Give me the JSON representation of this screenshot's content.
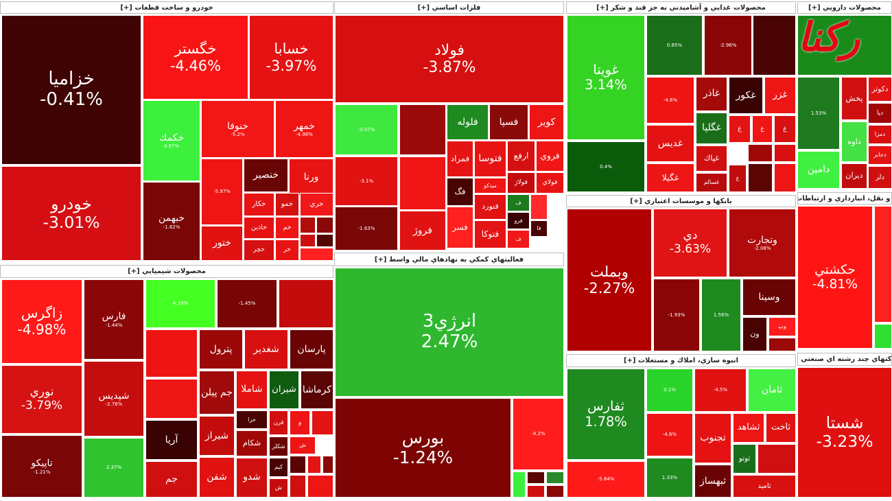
{
  "logo": "رکنا",
  "sectors": [
    {
      "title": "خودرو و ساخت قطعات [+]",
      "tiles": [
        {
          "symbol": "خزاميا",
          "change": "-0.41%",
          "color": "#3f0303"
        },
        {
          "symbol": "خودرو",
          "change": "-3.01%",
          "color": "#d40e12"
        },
        {
          "symbol": "خگستر",
          "change": "-4.46%",
          "color": "#f81414"
        },
        {
          "symbol": "خسابا",
          "change": "-3.97%",
          "color": "#e41212"
        },
        {
          "symbol": "خكمك",
          "change": "4.97%",
          "color": "#3cf03c"
        },
        {
          "symbol": "خنوفا",
          "change": "-5.2%",
          "color": "#f21616"
        },
        {
          "symbol": "خمهر",
          "change": "-4.98%",
          "color": "#f01515"
        },
        {
          "symbol": "خبهمن",
          "change": "-1.62%",
          "color": "#7a0606"
        },
        {
          "change": "-5.97%",
          "color": "#ef1515"
        },
        {
          "symbol": "خنصير",
          "color": "#6a0505"
        },
        {
          "symbol": "ورنا",
          "color": "#e81414"
        },
        {
          "symbol": "ختور",
          "color": "#e01212"
        },
        {
          "symbol": "خكار",
          "color": "#e81414"
        },
        {
          "symbol": "خمو",
          "color": "#d41010"
        },
        {
          "symbol": "خري",
          "color": "#f01818"
        },
        {
          "symbol": "خاذين",
          "color": "#e41212"
        },
        {
          "symbol": "خم",
          "color": "#ee1515"
        },
        {
          "symbol": "خچر",
          "color": "#d41010"
        },
        {
          "symbol": "خر",
          "color": "#e81414"
        },
        {
          "color": "#b00c0c"
        },
        {
          "color": "#8a0808"
        },
        {
          "color": "#cc1010"
        },
        {
          "color": "#550404"
        },
        {
          "color": "#ff2020"
        }
      ]
    },
    {
      "title": "فلزات اساسي [+]",
      "tiles": [
        {
          "symbol": "فولاد",
          "change": "-3.87%",
          "color": "#d61010"
        },
        {
          "change": "-3.07%",
          "color": "#3fe83f"
        },
        {
          "color": "#9a0a0a"
        },
        {
          "symbol": "فلوله",
          "color": "#1f8a1f"
        },
        {
          "symbol": "فسپا",
          "color": "#8a0a0a"
        },
        {
          "symbol": "كوير",
          "color": "#ee1515"
        },
        {
          "change": "-3.1%",
          "color": "#e01212"
        },
        {
          "color": "#f01616"
        },
        {
          "symbol": "فمراد",
          "color": "#e41414"
        },
        {
          "symbol": "فتوسا",
          "color": "#e81414"
        },
        {
          "symbol": "ارفع",
          "color": "#d61010"
        },
        {
          "symbol": "فروي",
          "color": "#f01616"
        },
        {
          "symbol": "فگ",
          "color": "#4a0303"
        },
        {
          "symbol": "ميدكو",
          "color": "#ee1515"
        },
        {
          "symbol": "فولاژ",
          "color": "#c40c0c"
        },
        {
          "symbol": "فولاي",
          "color": "#e81414"
        },
        {
          "symbol": "فنورد",
          "color": "#e01212"
        },
        {
          "symbol": "ف",
          "color": "#1d7a1d"
        },
        {
          "color": "#ff2a2a"
        },
        {
          "symbol": "فسر",
          "color": "#ff2020"
        },
        {
          "symbol": "فتوكا",
          "color": "#e41414"
        },
        {
          "symbol": "فرو",
          "color": "#3a0303"
        },
        {
          "symbol": "فا",
          "color": "#4a0404"
        },
        {
          "symbol": "ف",
          "color": "#f01818"
        },
        {
          "change": "-1.63%",
          "color": "#7a0606"
        },
        {
          "symbol": "فروژ",
          "color": "#e01212"
        }
      ]
    },
    {
      "title": "فعاليتهاي كمكي به نهادهاي مالي واسط [+]",
      "tiles": [
        {
          "symbol": "انرژي3",
          "change": "2.47%",
          "color": "#2fb82f"
        },
        {
          "symbol": "بورس",
          "change": "-1.24%",
          "color": "#7e0404"
        },
        {
          "change": "-4.2%",
          "color": "#ff1c1c"
        },
        {
          "color": "#3af03a"
        },
        {
          "color": "#5a0404"
        },
        {
          "color": "#2a8a2a"
        },
        {
          "color": "#d01010"
        },
        {
          "color": "#8a0808"
        }
      ]
    },
    {
      "title": "محصولات غذايي و آشاميدني به جز قند و شكر [+]",
      "tiles": [
        {
          "symbol": "غويتا",
          "change": "3.14%",
          "color": "#35d424"
        },
        {
          "change": "0.4%",
          "color": "#0a5c0a"
        },
        {
          "change": "0.85%",
          "color": "#1a6e1a"
        },
        {
          "change": "-2.96%",
          "color": "#8a0606"
        },
        {
          "color": "#4a0303"
        },
        {
          "change": "-4.6%",
          "color": "#ee1414"
        },
        {
          "symbol": "غاذر",
          "color": "#a40a0a"
        },
        {
          "symbol": "غكور",
          "color": "#3a0303"
        },
        {
          "symbol": "غزر",
          "color": "#ee1515"
        },
        {
          "symbol": "غديس",
          "color": "#e41212"
        },
        {
          "symbol": "غگلپا",
          "color": "#1a6e1a"
        },
        {
          "symbol": "غ",
          "color": "#e41414"
        },
        {
          "symbol": "غ",
          "color": "#f01616"
        },
        {
          "symbol": "غ",
          "color": "#d81010"
        },
        {
          "symbol": "غپاك",
          "color": "#d01010"
        },
        {
          "symbol": "غگيلا",
          "color": "#ee1515"
        },
        {
          "symbol": "غسالم",
          "color": "#b80c0c"
        },
        {
          "symbol": "غ",
          "color": "#c00c0c"
        },
        {
          "color": "#a00808"
        },
        {
          "color": "#d81010"
        },
        {
          "color": "#5a0404"
        },
        {
          "color": "#ee1515"
        }
      ]
    },
    {
      "title": "محصولات دارويي [+]",
      "tiles": [
        {
          "color": "#1a8a1a"
        },
        {
          "change": "1.53%",
          "color": "#1f7a1f"
        },
        {
          "symbol": "دكوثر",
          "color": "#e01212"
        },
        {
          "symbol": "پخش",
          "color": "#d01010"
        },
        {
          "symbol": "دپا",
          "color": "#a00808"
        },
        {
          "symbol": "داوه",
          "color": "#44e044"
        },
        {
          "symbol": "دمزا",
          "color": "#d81010"
        },
        {
          "symbol": "دجابر",
          "color": "#e41414"
        },
        {
          "symbol": "دامين",
          "color": "#40f040"
        },
        {
          "symbol": "ديران",
          "color": "#c00c0c"
        },
        {
          "symbol": "دلر",
          "color": "#d01010"
        }
      ]
    },
    {
      "title": "بانكها و موسسات اعتباري [+]",
      "tiles": [
        {
          "symbol": "وبملت",
          "change": "-2.27%",
          "color": "#b00000"
        },
        {
          "symbol": "دي",
          "change": "-3.63%",
          "color": "#e01414"
        },
        {
          "symbol": "وتجارت",
          "change": "-2.08%",
          "color": "#b00a0a"
        },
        {
          "change": "-1.93%",
          "color": "#8a0505"
        },
        {
          "change": "1.56%",
          "color": "#1f8a1f"
        },
        {
          "symbol": "وسينا",
          "color": "#6a0404"
        },
        {
          "symbol": "ون",
          "color": "#4a0303"
        },
        {
          "symbol": "وپ",
          "color": "#ff1c1c"
        },
        {
          "color": "#9a0808"
        }
      ]
    },
    {
      "title": "انبوه سازي، املاك و مستغلات [+]",
      "tiles": [
        {
          "symbol": "ثفارس",
          "change": "1.78%",
          "color": "#1f8a1f"
        },
        {
          "change": "-5.84%",
          "color": "#ff1a1a"
        },
        {
          "change": "0.1%",
          "color": "#2ad42a"
        },
        {
          "change": "-4.5%",
          "color": "#e01212"
        },
        {
          "symbol": "ثامان",
          "color": "#44f044"
        },
        {
          "change": "-4.6%",
          "color": "#ee1414"
        },
        {
          "symbol": "تجنوب",
          "color": "#e41212"
        },
        {
          "symbol": "ثشاهد",
          "color": "#ee1515"
        },
        {
          "symbol": "ثاخت",
          "color": "#e01212"
        },
        {
          "change": "1.33%",
          "color": "#1f8a1f"
        },
        {
          "symbol": "ثوتو",
          "color": "#1a6e1a"
        },
        {
          "color": "#d01010"
        },
        {
          "symbol": "ثبهساز",
          "color": "#6a0404"
        },
        {
          "symbol": "ثاميد",
          "color": "#d81010"
        }
      ]
    },
    {
      "title": "حمل و نقل، انبارداري و ارتباطات [+]",
      "tiles": [
        {
          "symbol": "حكشتي",
          "change": "-4.81%",
          "color": "#ff1414"
        },
        {
          "color": "#ff2020"
        },
        {
          "color": "#30e030"
        }
      ]
    },
    {
      "title": "شركتهاي چند رشته اي صنعتي [+]",
      "tiles": [
        {
          "symbol": "شستا",
          "change": "-3.23%",
          "color": "#e01010"
        }
      ]
    },
    {
      "title": "محصولات شيميايي [+]",
      "tiles": [
        {
          "symbol": "زاگرس",
          "change": "-4.98%",
          "color": "#ff1a1a"
        },
        {
          "symbol": "فارس",
          "change": "-1.44%",
          "color": "#8b0707"
        },
        {
          "change": "4.39%",
          "color": "#44ff22"
        },
        {
          "change": "-1.45%",
          "color": "#7a0505"
        },
        {
          "color": "#c40c0c"
        },
        {
          "symbol": "نوري",
          "change": "-3.79%",
          "color": "#d61212"
        },
        {
          "symbol": "شپديس",
          "change": "-2.76%",
          "color": "#c40e0e"
        },
        {
          "symbol": "تاپيكو",
          "change": "-1.21%",
          "color": "#7a0606"
        },
        {
          "change": "2.37%",
          "color": "#2fc42f"
        },
        {
          "color": "#ee1414"
        },
        {
          "symbol": "پترول",
          "color": "#9a0808"
        },
        {
          "symbol": "شغدير",
          "color": "#d61010"
        },
        {
          "symbol": "پارسان",
          "color": "#6a0404"
        },
        {
          "color": "#ee1515"
        },
        {
          "symbol": "جم پيلن",
          "color": "#a00a0a"
        },
        {
          "symbol": "شاملا",
          "color": "#e41212"
        },
        {
          "symbol": "شيران",
          "color": "#0f5c0f"
        },
        {
          "symbol": "كرماشا",
          "color": "#5a0404"
        },
        {
          "symbol": "آريا",
          "color": "#3a0303"
        },
        {
          "symbol": "جم",
          "color": "#d01010"
        },
        {
          "symbol": "شيراز",
          "color": "#c40c0c"
        },
        {
          "symbol": "شفن",
          "color": "#e01212"
        },
        {
          "symbol": "خرا",
          "color": "#4a0303"
        },
        {
          "symbol": "قرن",
          "color": "#d01010"
        },
        {
          "symbol": "و",
          "color": "#ee1515"
        },
        {
          "color": "#e41414"
        },
        {
          "symbol": "شكام",
          "color": "#a00808"
        },
        {
          "symbol": "شكلر",
          "color": "#6a0404"
        },
        {
          "symbol": "ش",
          "color": "#ee1515"
        },
        {
          "symbol": "شدو",
          "color": "#d01010"
        },
        {
          "symbol": "كيم",
          "color": "#4a0303"
        },
        {
          "symbol": "ش",
          "color": "#c40c0c"
        },
        {
          "color": "#5a0404"
        },
        {
          "color": "#e41414"
        },
        {
          "color": "#8a0808"
        },
        {
          "color": "#d01010"
        },
        {
          "color": "#ee1515"
        }
      ]
    }
  ]
}
